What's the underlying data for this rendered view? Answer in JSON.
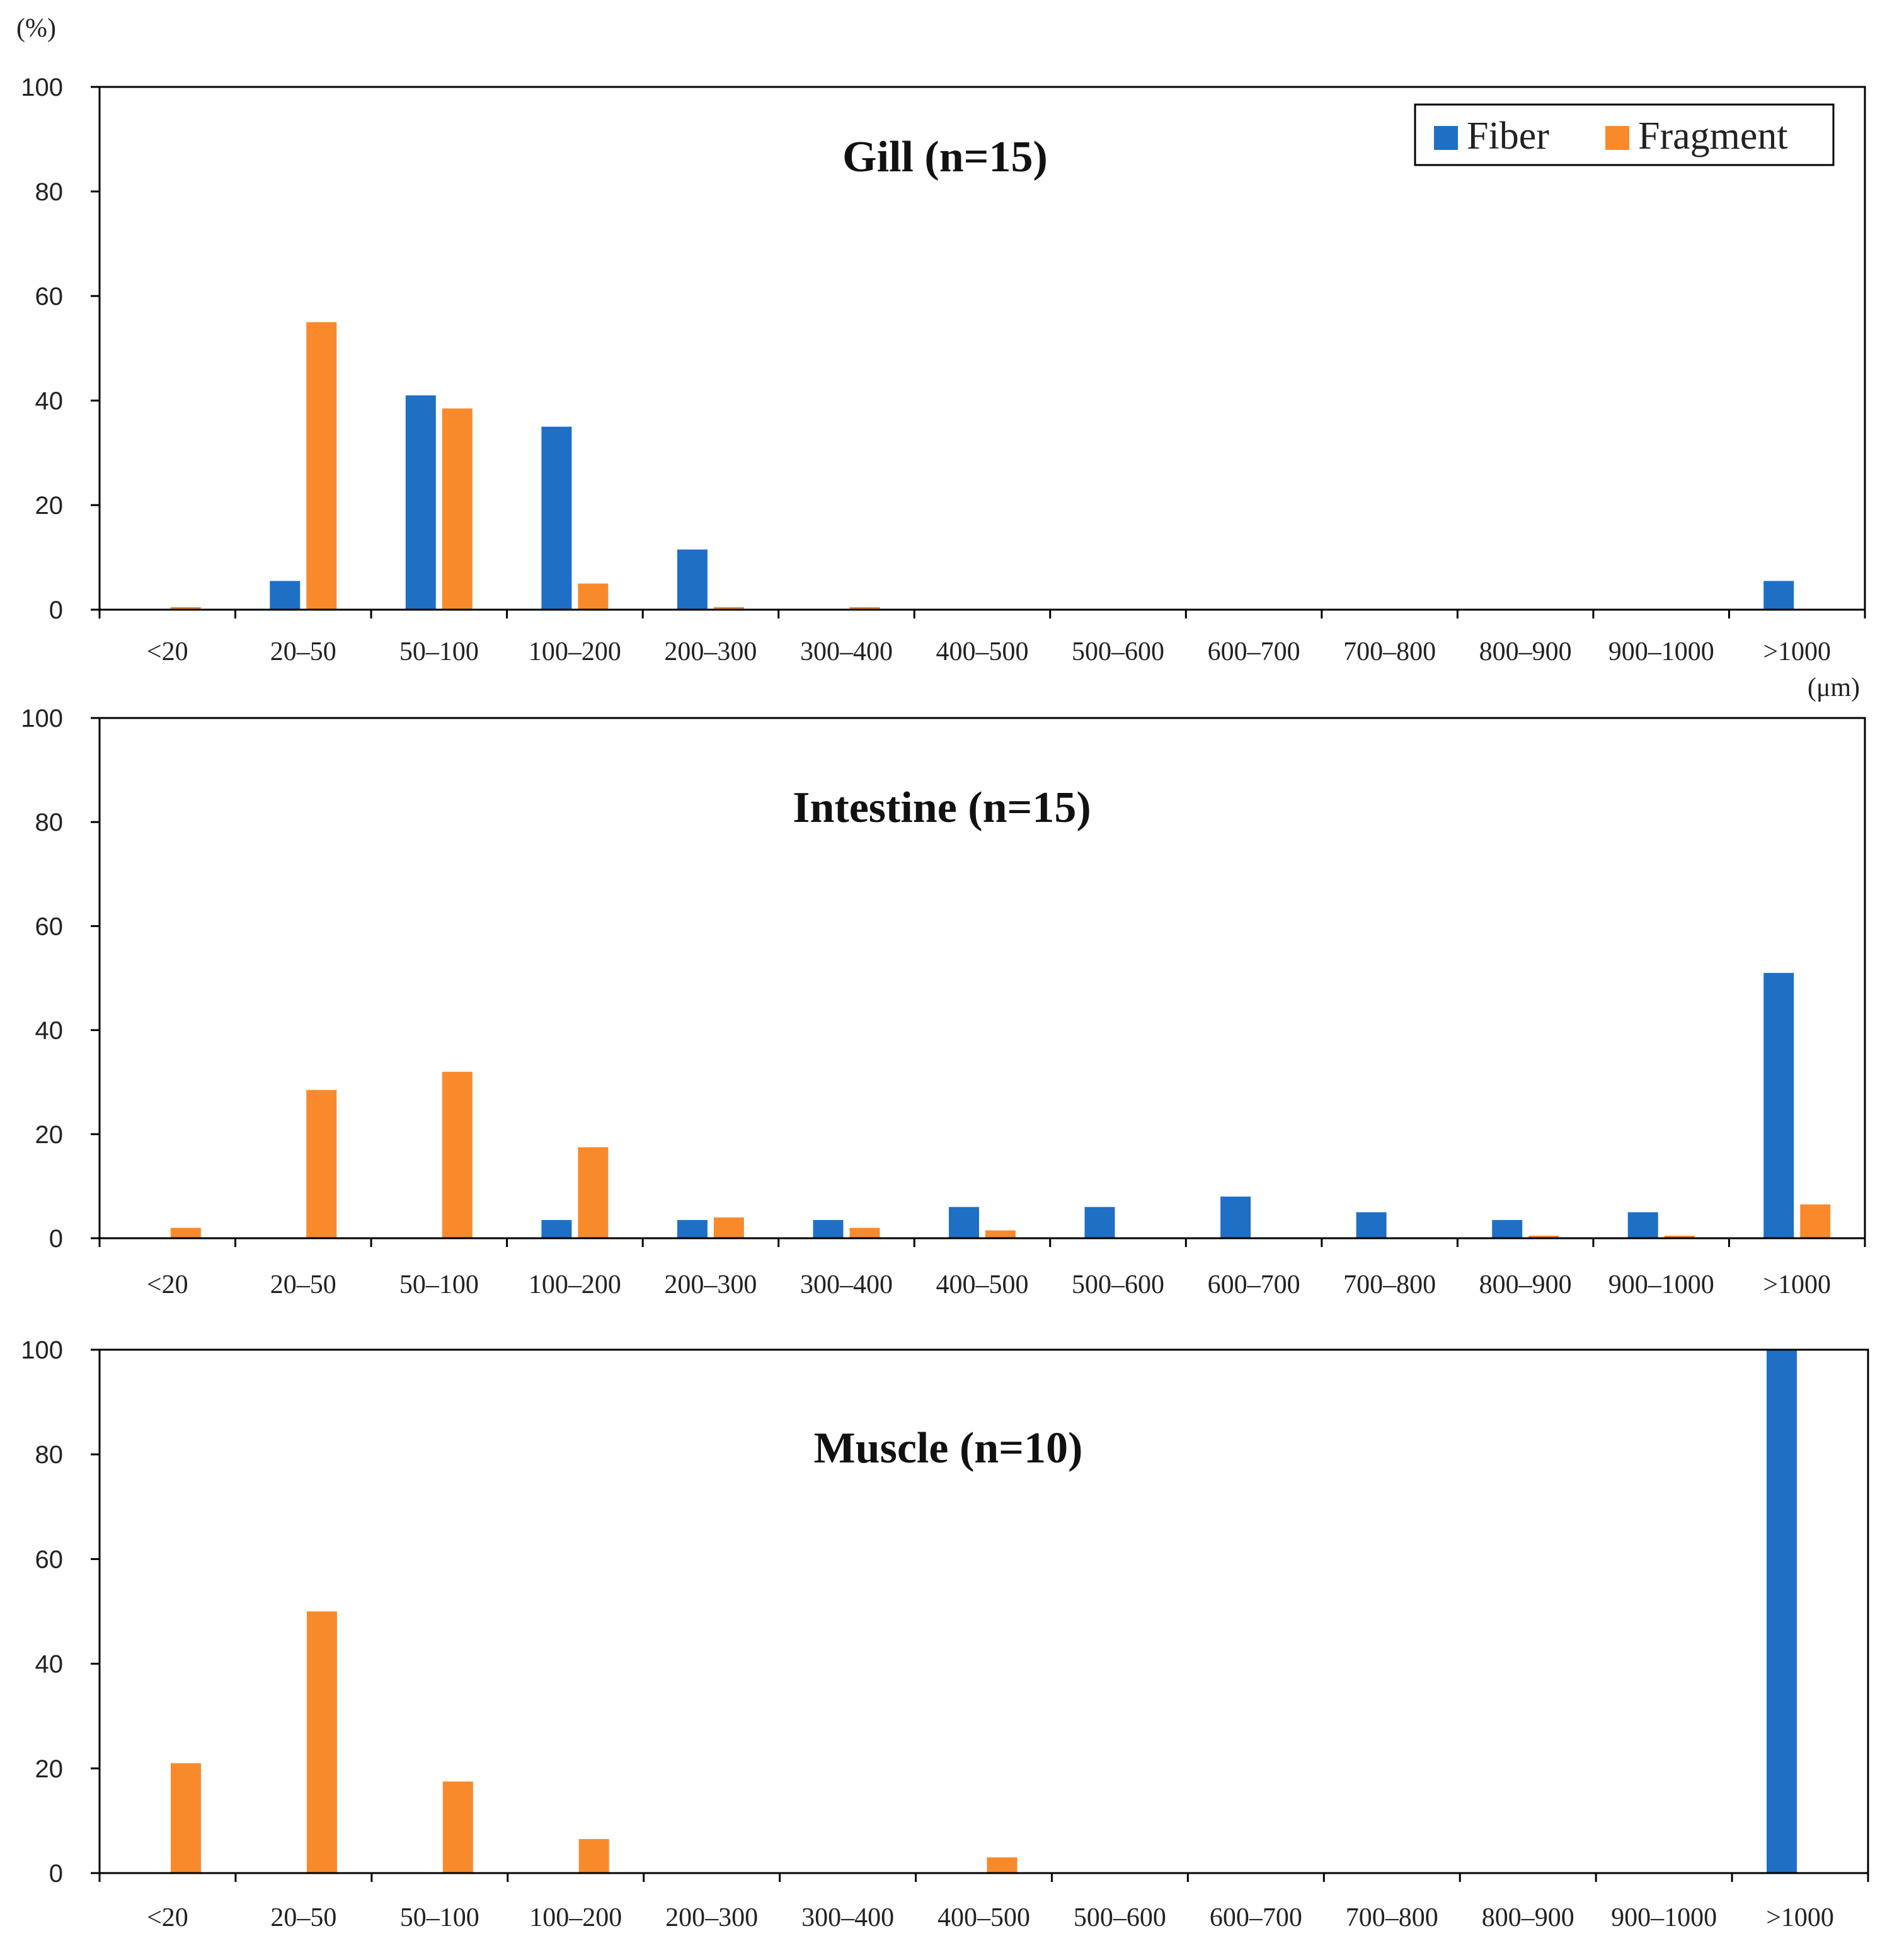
{
  "figure": {
    "y_unit": "(%)",
    "x_unit": "(μm)"
  },
  "legend": {
    "fiber": "Fiber",
    "fragment": "Fragment"
  },
  "colors": {
    "fiber": "#1f6fc5",
    "fragment": "#f98a2b",
    "axis": "#000000"
  },
  "chart_data": [
    {
      "type": "bar",
      "title": "Gill (n=15)",
      "ylabel": "(%)",
      "xlabel": "(μm)",
      "ylim": [
        0,
        100
      ],
      "yticks": [
        0,
        20,
        40,
        60,
        80,
        100
      ],
      "legend_position": "top-right",
      "categories": [
        "<20",
        "20–50",
        "50–100",
        "100–200",
        "200–300",
        "300–400",
        "400–500",
        "500–600",
        "600–700",
        "700–800",
        "800–900",
        "900–1000",
        ">1000"
      ],
      "series": [
        {
          "name": "Fiber",
          "values": [
            0,
            5.5,
            41,
            35,
            11.5,
            0,
            0,
            0,
            0,
            0,
            0,
            0,
            5.5
          ]
        },
        {
          "name": "Fragment",
          "values": [
            0.5,
            55,
            38.5,
            5,
            0.5,
            0.5,
            0,
            0,
            0,
            0,
            0,
            0,
            0
          ]
        }
      ]
    },
    {
      "type": "bar",
      "title": "Intestine (n=15)",
      "ylim": [
        0,
        100
      ],
      "yticks": [
        0,
        20,
        40,
        60,
        80,
        100
      ],
      "categories": [
        "<20",
        "20–50",
        "50–100",
        "100–200",
        "200–300",
        "300–400",
        "400–500",
        "500–600",
        "600–700",
        "700–800",
        "800–900",
        "900–1000",
        ">1000"
      ],
      "series": [
        {
          "name": "Fiber",
          "values": [
            0,
            0,
            0,
            3.5,
            3.5,
            3.5,
            6,
            6,
            8,
            5,
            3.5,
            5,
            51
          ]
        },
        {
          "name": "Fragment",
          "values": [
            2,
            28.5,
            32,
            17.5,
            4,
            2,
            1.5,
            0,
            0,
            0,
            0.5,
            0.5,
            6.5
          ]
        }
      ]
    },
    {
      "type": "bar",
      "title": "Muscle (n=10)",
      "ylim": [
        0,
        100
      ],
      "yticks": [
        0,
        20,
        40,
        60,
        80,
        100
      ],
      "categories": [
        "<20",
        "20–50",
        "50–100",
        "100–200",
        "200–300",
        "300–400",
        "400–500",
        "500–600",
        "600–700",
        "700–800",
        "800–900",
        "900–1000",
        ">1000"
      ],
      "series": [
        {
          "name": "Fiber",
          "values": [
            0,
            0,
            0,
            0,
            0,
            0,
            0,
            0,
            0,
            0,
            0,
            0,
            100
          ]
        },
        {
          "name": "Fragment",
          "values": [
            21,
            50,
            17.5,
            6.5,
            0,
            0,
            3,
            0,
            0,
            0,
            0,
            0,
            0
          ]
        }
      ]
    }
  ]
}
